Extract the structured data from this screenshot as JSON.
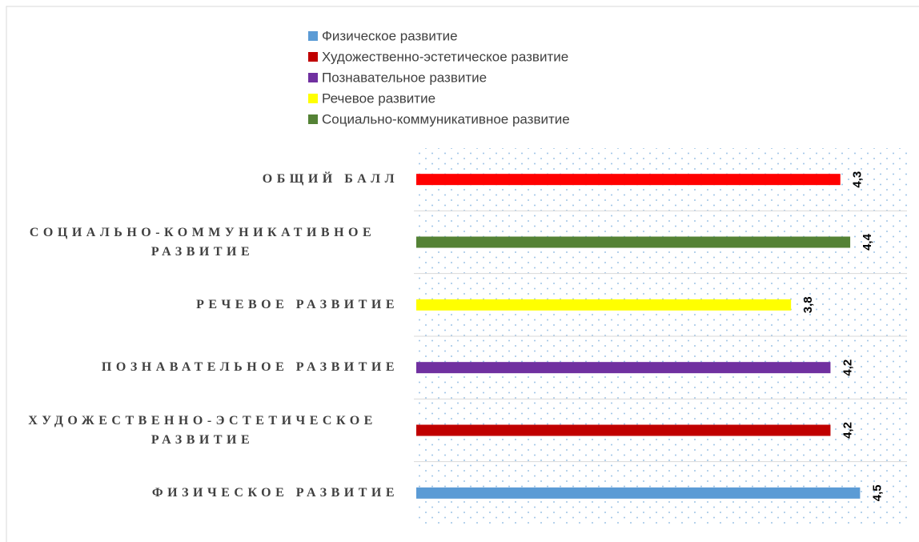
{
  "chart_data": {
    "type": "bar",
    "orientation": "horizontal",
    "categories": [
      "ФИЗИЧЕСКОЕ РАЗВИТИЕ",
      "ХУДОЖЕСТВЕННО-ЭСТЕТИЧЕСКОЕ РАЗВИТИЕ",
      "ПОЗНАВАТЕЛЬНОЕ РАЗВИТИЕ",
      "РЕЧЕВОЕ РАЗВИТИЕ",
      "СОЦИАЛЬНО-КОММУНИКАТИВНОЕ РАЗВИТИЕ",
      "ОБЩИЙ БАЛЛ"
    ],
    "values": [
      4.5,
      4.2,
      4.2,
      3.8,
      4.4,
      4.3
    ],
    "value_labels": [
      "4,5",
      "4,2",
      "4,2",
      "3,8",
      "4,4",
      "4,3"
    ],
    "colors": [
      "#5b9bd5",
      "#c00000",
      "#7030a0",
      "#ffff00",
      "#548235",
      "#ff0000"
    ],
    "legend": [
      {
        "name": "Физическое развитие",
        "color": "#5b9bd5"
      },
      {
        "name": "Художественно-эстетическое развитие",
        "color": "#c00000"
      },
      {
        "name": "Познавательное развитие",
        "color": "#7030a0"
      },
      {
        "name": "Речевое развитие",
        "color": "#ffff00"
      },
      {
        "name": "Социально-коммуникативное развитие",
        "color": "#548235"
      }
    ]
  }
}
